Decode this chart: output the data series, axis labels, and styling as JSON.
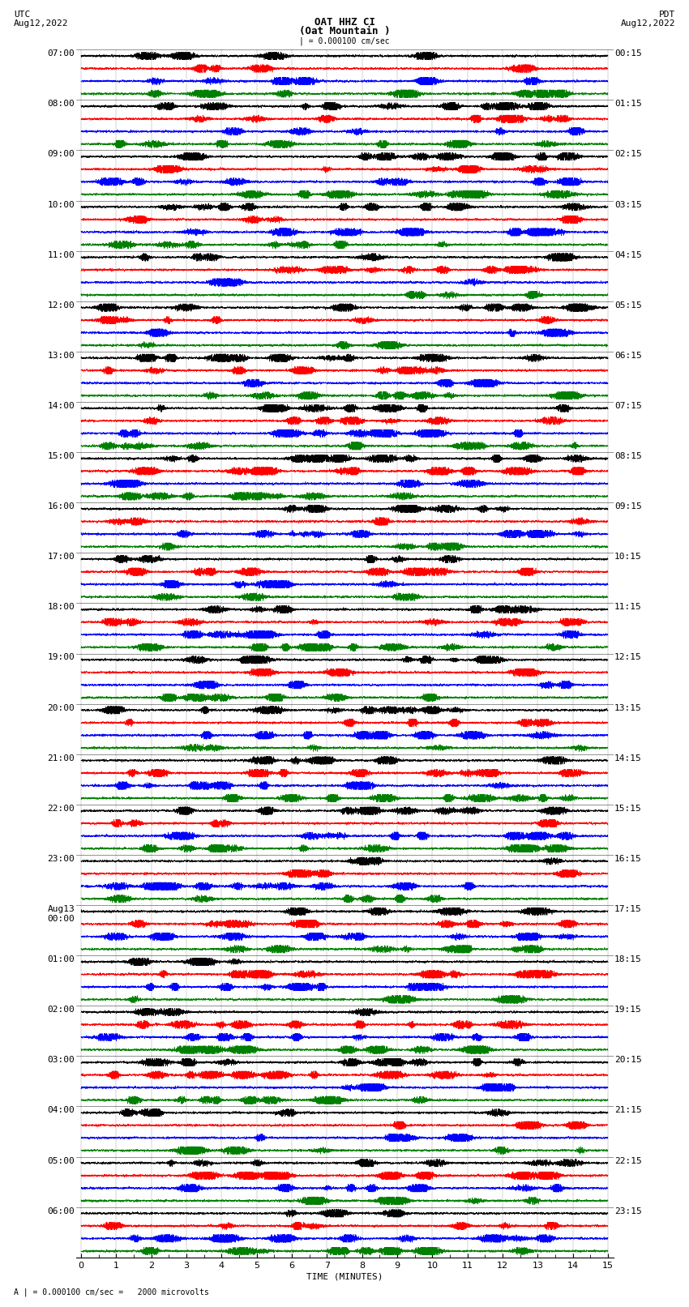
{
  "title_line1": "OAT HHZ CI",
  "title_line2": "(Oat Mountain )",
  "scale_bar": "| = 0.000100 cm/sec",
  "left_label_1": "UTC",
  "left_label_2": "Aug12,2022",
  "right_label_1": "PDT",
  "right_label_2": "Aug12,2022",
  "bottom_label": "TIME (MINUTES)",
  "scale_note": "A | = 0.000100 cm/sec =   2000 microvolts",
  "utc_times": [
    "07:00",
    "08:00",
    "09:00",
    "10:00",
    "11:00",
    "12:00",
    "13:00",
    "14:00",
    "15:00",
    "16:00",
    "17:00",
    "18:00",
    "19:00",
    "20:00",
    "21:00",
    "22:00",
    "23:00",
    "Aug13\n00:00",
    "01:00",
    "02:00",
    "03:00",
    "04:00",
    "05:00",
    "06:00"
  ],
  "pdt_times": [
    "00:15",
    "01:15",
    "02:15",
    "03:15",
    "04:15",
    "05:15",
    "06:15",
    "07:15",
    "08:15",
    "09:15",
    "10:15",
    "11:15",
    "12:15",
    "13:15",
    "14:15",
    "15:15",
    "16:15",
    "17:15",
    "18:15",
    "19:15",
    "20:15",
    "21:15",
    "22:15",
    "23:15"
  ],
  "trace_colors": [
    "black",
    "red",
    "blue",
    "green"
  ],
  "n_rows": 24,
  "n_traces_per_row": 4,
  "duration_minutes": 15,
  "bg_color": "white",
  "font_size_title": 9,
  "font_size_labels": 8,
  "font_size_time": 8,
  "trace_amp": 0.32,
  "linewidth": 0.4
}
